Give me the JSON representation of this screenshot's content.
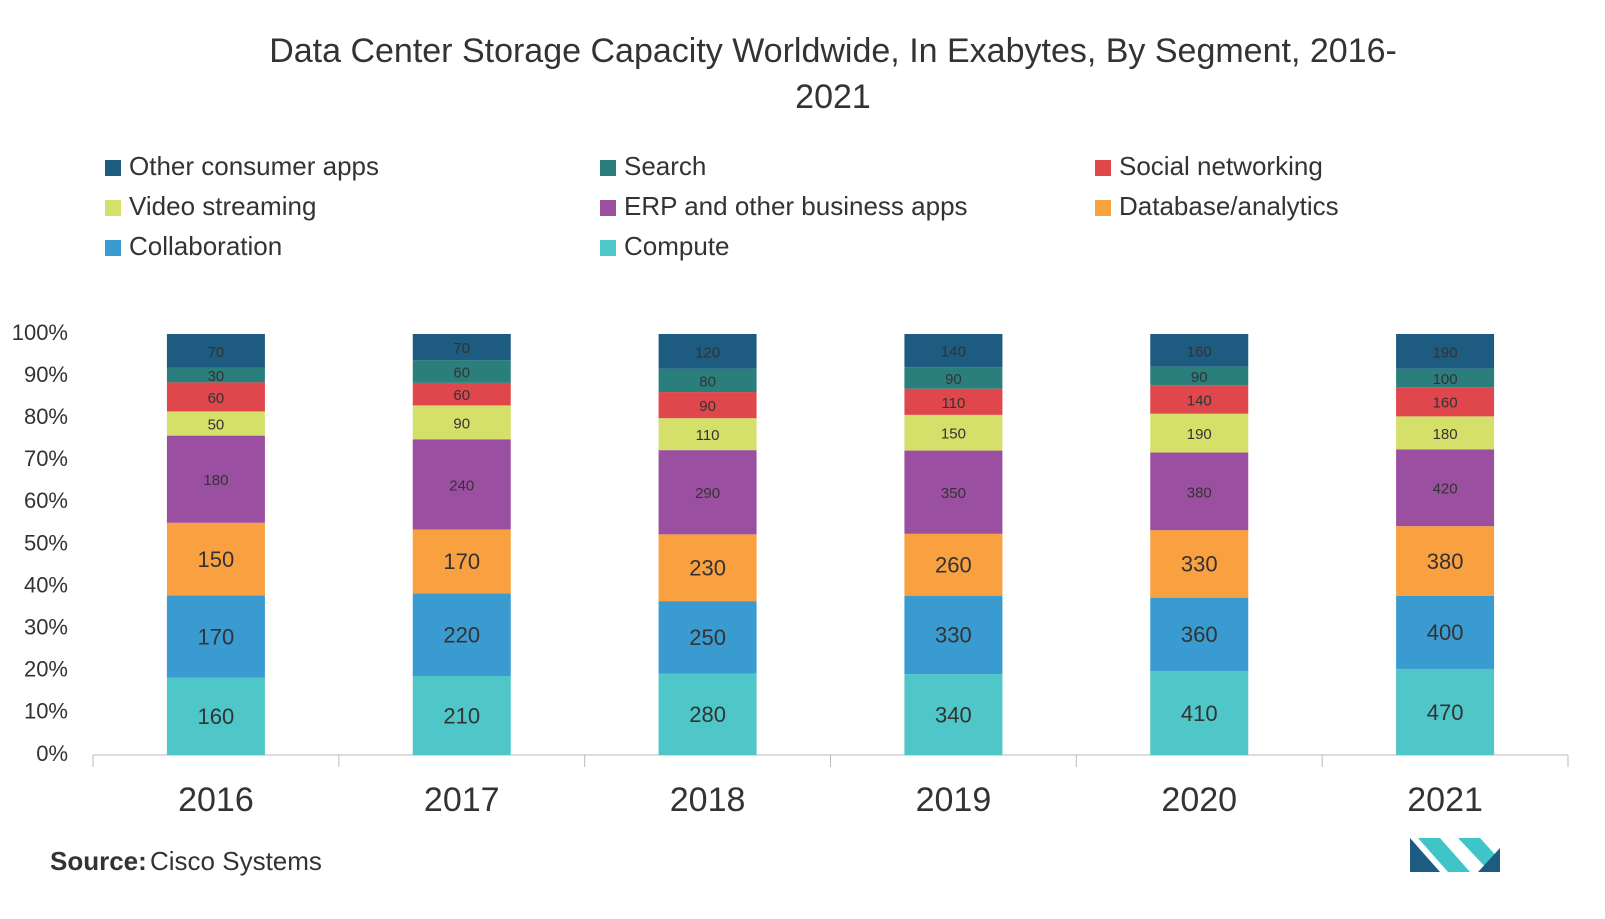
{
  "chart_data": {
    "type": "stacked_bar",
    "stacking": "percent",
    "title": "Data Center Storage Capacity Worldwide, In Exabytes, By Segment, 2016-2021",
    "categories": [
      "2016",
      "2017",
      "2018",
      "2019",
      "2020",
      "2021"
    ],
    "series": [
      {
        "name": "Compute",
        "color": "#4fc6c8",
        "values": [
          160,
          210,
          280,
          340,
          410,
          470
        ]
      },
      {
        "name": "Collaboration",
        "color": "#3a9bd1",
        "values": [
          170,
          220,
          250,
          330,
          360,
          400
        ]
      },
      {
        "name": "Database/analytics",
        "color": "#f9a040",
        "values": [
          150,
          170,
          230,
          260,
          330,
          380
        ]
      },
      {
        "name": "ERP and other business apps",
        "color": "#9b4fa0",
        "values": [
          180,
          240,
          290,
          350,
          380,
          420
        ]
      },
      {
        "name": "Video streaming",
        "color": "#d4e06a",
        "values": [
          50,
          90,
          110,
          150,
          190,
          180
        ]
      },
      {
        "name": "Social networking",
        "color": "#e0474c",
        "values": [
          60,
          60,
          90,
          110,
          140,
          160
        ]
      },
      {
        "name": "Search",
        "color": "#2a7f7c",
        "values": [
          30,
          60,
          80,
          90,
          90,
          100
        ]
      },
      {
        "name": "Other consumer apps",
        "color": "#1d5b80",
        "values": [
          70,
          70,
          120,
          140,
          160,
          190
        ]
      }
    ],
    "ylim": [
      0,
      100
    ],
    "yticks": [
      {
        "value": 0,
        "label": "0%"
      },
      {
        "value": 10,
        "label": "10%"
      },
      {
        "value": 20,
        "label": "20%"
      },
      {
        "value": 30,
        "label": "30%"
      },
      {
        "value": 40,
        "label": "40%"
      },
      {
        "value": 50,
        "label": "50%"
      },
      {
        "value": 60,
        "label": "60%"
      },
      {
        "value": 70,
        "label": "70%"
      },
      {
        "value": 80,
        "label": "80%"
      },
      {
        "value": 90,
        "label": "90%"
      },
      {
        "value": 100,
        "label": "100%"
      }
    ],
    "grid": false,
    "legend": "top",
    "source_label": "Source:",
    "source": "Cisco Systems"
  }
}
